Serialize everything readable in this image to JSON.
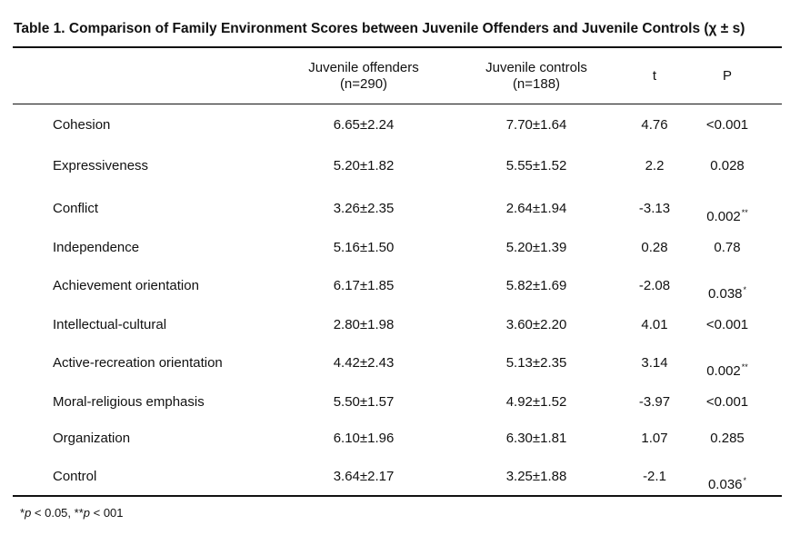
{
  "table": {
    "title": "Table 1. Comparison of Family Environment Scores between Juvenile Offenders and Juvenile Controls (χ ± s)",
    "headers": {
      "offenders_line1": "Juvenile offenders",
      "offenders_line2": "(n=290)",
      "controls_line1": "Juvenile controls",
      "controls_line2": "(n=188)",
      "t": "t",
      "p": "P"
    },
    "rows": [
      {
        "label": "Cohesion",
        "offenders": "6.65±2.24",
        "controls": "7.70±1.64",
        "t": "4.76",
        "p": "<0.001",
        "sig": ""
      },
      {
        "label": "Expressiveness",
        "offenders": "5.20±1.82",
        "controls": "5.55±1.52",
        "t": "2.2",
        "p": "0.028",
        "sig": ""
      },
      {
        "label": "Conflict",
        "offenders": "3.26±2.35",
        "controls": "2.64±1.94",
        "t": "-3.13",
        "p": "0.002",
        "sig": "**"
      },
      {
        "label": "Independence",
        "offenders": "5.16±1.50",
        "controls": "5.20±1.39",
        "t": "0.28",
        "p": "0.78",
        "sig": ""
      },
      {
        "label": "Achievement orientation",
        "offenders": "6.17±1.85",
        "controls": "5.82±1.69",
        "t": "-2.08",
        "p": "0.038",
        "sig": "*"
      },
      {
        "label": "Intellectual-cultural",
        "offenders": "2.80±1.98",
        "controls": "3.60±2.20",
        "t": "4.01",
        "p": "<0.001",
        "sig": ""
      },
      {
        "label": "Active-recreation orientation",
        "offenders": "4.42±2.43",
        "controls": "5.13±2.35",
        "t": "3.14",
        "p": "0.002",
        "sig": "**"
      },
      {
        "label": "Moral-religious emphasis",
        "offenders": "5.50±1.57",
        "controls": "4.92±1.52",
        "t": "-3.97",
        "p": "<0.001",
        "sig": ""
      },
      {
        "label": "Organization",
        "offenders": "6.10±1.96",
        "controls": "6.30±1.81",
        "t": "1.07",
        "p": "0.285",
        "sig": ""
      },
      {
        "label": "Control",
        "offenders": "3.64±2.17",
        "controls": "3.25±1.88",
        "t": "-2.1",
        "p": "0.036",
        "sig": "*"
      }
    ],
    "footnote": {
      "star1": "*",
      "p1": "p",
      "rest1": " < 0.05, **",
      "p2": "p",
      "rest2": " < 001"
    }
  }
}
